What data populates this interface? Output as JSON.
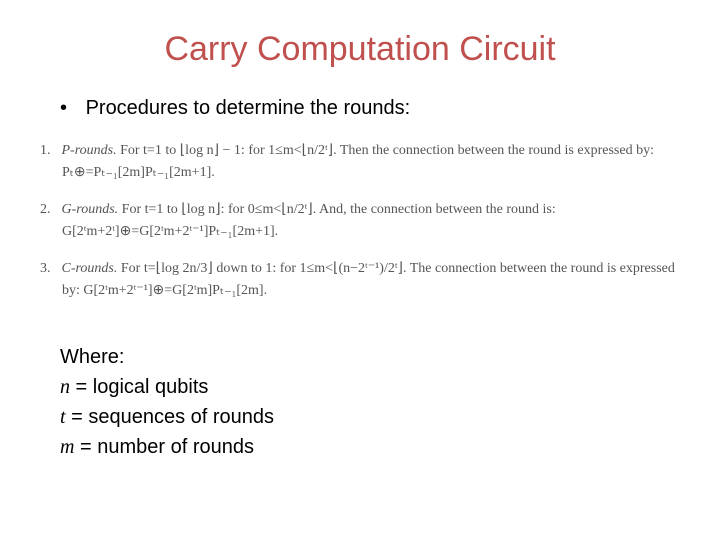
{
  "title": {
    "text": "Carry Computation Circuit",
    "color": "#c0504d",
    "fontsize": 34
  },
  "bullet": {
    "marker": "•",
    "text": "Procedures to determine the rounds:",
    "fontsize": 20
  },
  "rounds": {
    "color": "#555555",
    "fontsize": 14,
    "items": [
      {
        "num": "1.",
        "name": "P-rounds.",
        "line": "For t=1 to ⌊log n⌋ − 1: for 1≤m<⌊n/2ᵗ⌋. Then the connection between the round is expressed by: Pₜ⊕=Pₜ₋₁[2m]Pₜ₋₁[2m+1]."
      },
      {
        "num": "2.",
        "name": "G-rounds.",
        "line": "For t=1 to ⌊log n⌋: for 0≤m<⌊n/2ᵗ⌋. And, the connection between the round is: G[2ᵗm+2ᵗ]⊕=G[2ᵗm+2ᵗ⁻¹]Pₜ₋₁[2m+1]."
      },
      {
        "num": "3.",
        "name": "C-rounds.",
        "line": "For t=⌊log 2n/3⌋ down to 1: for 1≤m<⌊(n−2ᵗ⁻¹)/2ᵗ⌋. The connection between the round is expressed by: G[2ᵗm+2ᵗ⁻¹]⊕=G[2ᵗm]Pₜ₋₁[2m]."
      }
    ]
  },
  "where": {
    "heading": "Where:",
    "defs": [
      {
        "sym": "n",
        "desc": " = logical qubits"
      },
      {
        "sym": "t",
        "desc": " = sequences of rounds"
      },
      {
        "sym": "m",
        "desc": " = number of rounds"
      }
    ],
    "fontsize": 20
  },
  "background_color": "#ffffff"
}
